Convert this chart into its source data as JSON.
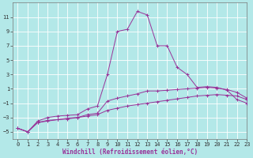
{
  "xlabel": "Windchill (Refroidissement éolien,°C)",
  "background_color": "#b3e8e8",
  "grid_color": "#d0eeee",
  "line_color": "#993399",
  "xlim": [
    -0.5,
    23
  ],
  "ylim": [
    -6.0,
    13.0
  ],
  "xticks": [
    0,
    1,
    2,
    3,
    4,
    5,
    6,
    7,
    8,
    9,
    10,
    11,
    12,
    13,
    14,
    15,
    16,
    17,
    18,
    19,
    20,
    21,
    22,
    23
  ],
  "yticks": [
    -5,
    -3,
    -1,
    1,
    3,
    5,
    7,
    9,
    11
  ],
  "line1_x": [
    0,
    1,
    2,
    3,
    4,
    5,
    6,
    7,
    8,
    9,
    10,
    11,
    12,
    13,
    14,
    15,
    16,
    17,
    18,
    19,
    20,
    21,
    22,
    23
  ],
  "line1_y": [
    -4.5,
    -5.0,
    -3.5,
    -3.0,
    -2.8,
    -2.7,
    -2.6,
    -1.8,
    -1.4,
    3.0,
    9.0,
    9.3,
    11.8,
    11.3,
    7.0,
    7.0,
    4.0,
    3.0,
    1.2,
    1.3,
    1.2,
    0.8,
    -0.5,
    -1.0
  ],
  "line2_x": [
    0,
    1,
    2,
    3,
    4,
    5,
    6,
    7,
    8,
    9,
    10,
    11,
    12,
    13,
    14,
    15,
    16,
    17,
    18,
    19,
    20,
    21,
    22,
    23
  ],
  "line2_y": [
    -4.5,
    -5.0,
    -3.7,
    -3.4,
    -3.3,
    -3.1,
    -3.0,
    -2.6,
    -2.4,
    -0.7,
    -0.3,
    0.0,
    0.3,
    0.7,
    0.7,
    0.8,
    0.9,
    1.0,
    1.1,
    1.2,
    1.1,
    0.9,
    0.5,
    -0.3
  ],
  "line3_x": [
    0,
    1,
    2,
    3,
    4,
    5,
    6,
    7,
    8,
    9,
    10,
    11,
    12,
    13,
    14,
    15,
    16,
    17,
    18,
    19,
    20,
    21,
    22,
    23
  ],
  "line3_y": [
    -4.5,
    -5.0,
    -3.7,
    -3.5,
    -3.3,
    -3.2,
    -3.0,
    -2.8,
    -2.6,
    -2.0,
    -1.7,
    -1.4,
    -1.2,
    -1.0,
    -0.8,
    -0.6,
    -0.4,
    -0.2,
    0.0,
    0.1,
    0.2,
    0.1,
    0.0,
    -0.5
  ]
}
